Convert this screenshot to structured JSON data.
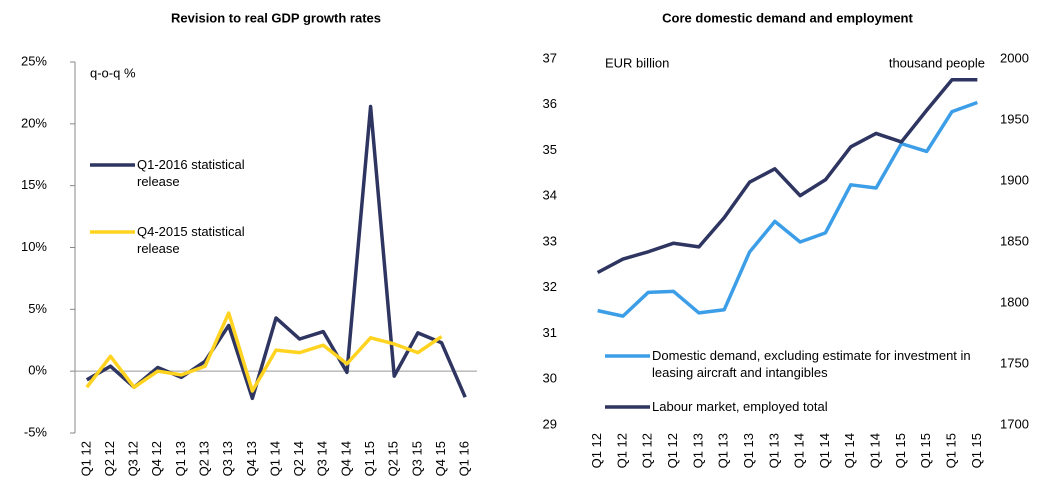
{
  "chart_data": [
    {
      "type": "line",
      "title": "Revision to real GDP growth rates",
      "ylabel": "q-o-q %",
      "categories": [
        "Q1 12",
        "Q2 12",
        "Q3 12",
        "Q4 12",
        "Q1 13",
        "Q2 13",
        "Q3 13",
        "Q4 13",
        "Q1 14",
        "Q2 14",
        "Q3 14",
        "Q4 14",
        "Q1 15",
        "Q2 15",
        "Q3 15",
        "Q4 15",
        "Q1 16"
      ],
      "series": [
        {
          "name": "Q1-2016 statistical release",
          "color": "#2e3561",
          "values": [
            -0.7,
            0.4,
            -1.3,
            0.3,
            -0.5,
            0.8,
            3.7,
            -2.2,
            4.3,
            2.6,
            3.2,
            -0.1,
            21.4,
            -0.4,
            3.1,
            2.3,
            -2.1
          ]
        },
        {
          "name": "Q4-2015 statistical release",
          "color": "#ffd320",
          "values": [
            -1.3,
            1.2,
            -1.3,
            0,
            -0.3,
            0.4,
            4.7,
            -1.6,
            1.7,
            1.5,
            2.1,
            0.6,
            2.7,
            2.2,
            1.5,
            2.8,
            null
          ]
        }
      ],
      "ylim": [
        -5,
        25
      ],
      "yticks": [
        {
          "value": -5,
          "label": "-5%"
        },
        {
          "value": 0,
          "label": "0%"
        },
        {
          "value": 5,
          "label": "5%"
        },
        {
          "value": 10,
          "label": "10%"
        },
        {
          "value": 15,
          "label": "15%"
        },
        {
          "value": 20,
          "label": "20%"
        },
        {
          "value": 25,
          "label": "25%"
        }
      ]
    },
    {
      "type": "line",
      "title": "Core domestic demand and employment",
      "ylabel": "EUR billion",
      "y2label": "thousand people",
      "categories": [
        "Q1 12",
        "Q1 12",
        "Q1 12",
        "Q1 12",
        "Q1 13",
        "Q1 13",
        "Q1 13",
        "Q1 13",
        "Q1 14",
        "Q1 14",
        "Q1 14",
        "Q1 14",
        "Q1 15",
        "Q1 15",
        "Q1 15",
        "Q1 15"
      ],
      "series": [
        {
          "name": "Domestic demand, excluding estimate for investment in leasing aircraft and intangibles",
          "color": "#3d9ee8",
          "values": [
            31.5,
            31.38,
            31.9,
            31.92,
            31.45,
            31.52,
            32.78,
            33.45,
            33.0,
            33.2,
            34.25,
            34.18,
            35.15,
            34.98,
            35.85,
            36.05
          ]
        },
        {
          "name": "Labour market, employed total",
          "color": "#2e3561",
          "axis": "y2",
          "values": [
            1825,
            1836,
            1842,
            1849,
            1846,
            1870,
            1899,
            1910,
            1888,
            1901,
            1928,
            1939,
            1932,
            1958,
            1983,
            1983
          ]
        }
      ],
      "ylim": [
        29,
        37
      ],
      "yticks": [
        29,
        30,
        31,
        32,
        33,
        34,
        35,
        36,
        37
      ],
      "y2lim": [
        1700,
        2000
      ],
      "y2ticks": [
        1700,
        1750,
        1800,
        1850,
        1900,
        1950,
        2000
      ]
    }
  ]
}
